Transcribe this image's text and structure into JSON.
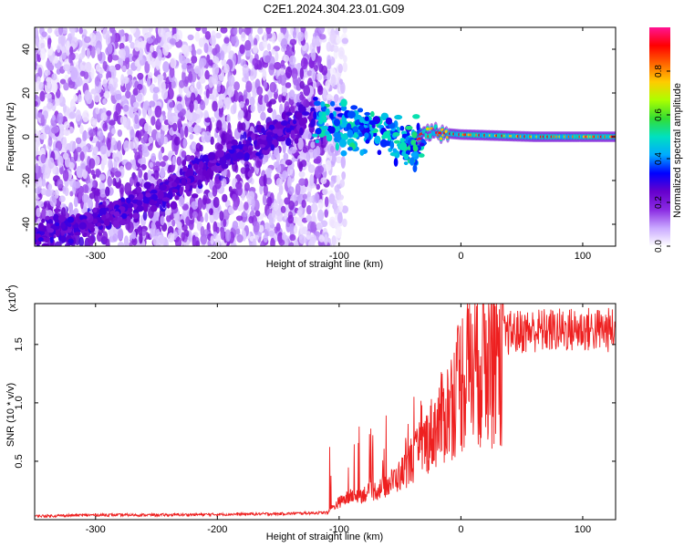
{
  "title": "C2E1.2024.304.23.01.G09",
  "chart_data": [
    {
      "type": "heatmap",
      "xlabel": "Height of straight line (km)",
      "ylabel": "Frequency (Hz)",
      "xlim": [
        -350,
        127
      ],
      "ylim": [
        -50,
        50
      ],
      "xticks": [
        -300,
        -200,
        -100,
        0,
        100
      ],
      "yticks": [
        -40,
        -20,
        0,
        20,
        40
      ],
      "colorbar": {
        "label": "Normalized spectral amplitude",
        "range": [
          0,
          1
        ],
        "ticks": [
          "0.0",
          "0.2",
          "0.4",
          "0.6",
          "0.8"
        ],
        "tick_values": [
          0.0,
          0.2,
          0.4,
          0.6,
          0.8
        ],
        "colors": [
          "#ffffff",
          "#c9a8ff",
          "#8a2be2",
          "#6600cc",
          "#0000ff",
          "#00aaff",
          "#00e0c0",
          "#33dd33",
          "#aaff00",
          "#ffcc00",
          "#ff6600",
          "#ff0000",
          "#ff1493"
        ]
      },
      "ridge": {
        "description": "doppler ridge",
        "points": [
          [
            -350,
            -45
          ],
          [
            -300,
            -38
          ],
          [
            -250,
            -27
          ],
          [
            -200,
            -12
          ],
          [
            -160,
            0
          ],
          [
            -125,
            8
          ],
          [
            -110,
            7
          ],
          [
            -90,
            3
          ],
          [
            -70,
            5
          ],
          [
            -55,
            0
          ],
          [
            -45,
            -5
          ],
          [
            -38,
            -3
          ],
          [
            -30,
            2
          ],
          [
            -20,
            2
          ],
          [
            0,
            1
          ],
          [
            60,
            0
          ],
          [
            127,
            0
          ]
        ]
      }
    },
    {
      "type": "line",
      "xlabel": "Height of straight line (km)",
      "ylabel": "SNR (10 * v/v)",
      "yscale_label": "(x10",
      "yscale_exp": "4",
      "xlim": [
        -350,
        127
      ],
      "ylim": [
        0,
        1.85
      ],
      "xticks": [
        -300,
        -200,
        -100,
        0,
        100
      ],
      "yticks": [
        "0.5",
        "1.0",
        "1.5"
      ],
      "ytick_values": [
        0.5,
        1.0,
        1.5
      ],
      "line_color": "#ee2020",
      "series": [
        {
          "x": [
            -350,
            -300,
            -250,
            -200,
            -150,
            -110,
            -100,
            -90,
            -80,
            -70,
            -60,
            -50,
            -40,
            -30,
            -20,
            -10,
            0,
            10,
            20,
            30,
            40,
            60,
            80,
            100,
            127
          ],
          "values": [
            0.03,
            0.04,
            0.04,
            0.045,
            0.05,
            0.06,
            0.15,
            0.2,
            0.22,
            0.25,
            0.3,
            0.38,
            0.5,
            0.65,
            0.8,
            0.95,
            1.2,
            1.35,
            1.45,
            1.52,
            1.6,
            1.62,
            1.62,
            1.63,
            1.62
          ]
        }
      ]
    }
  ]
}
